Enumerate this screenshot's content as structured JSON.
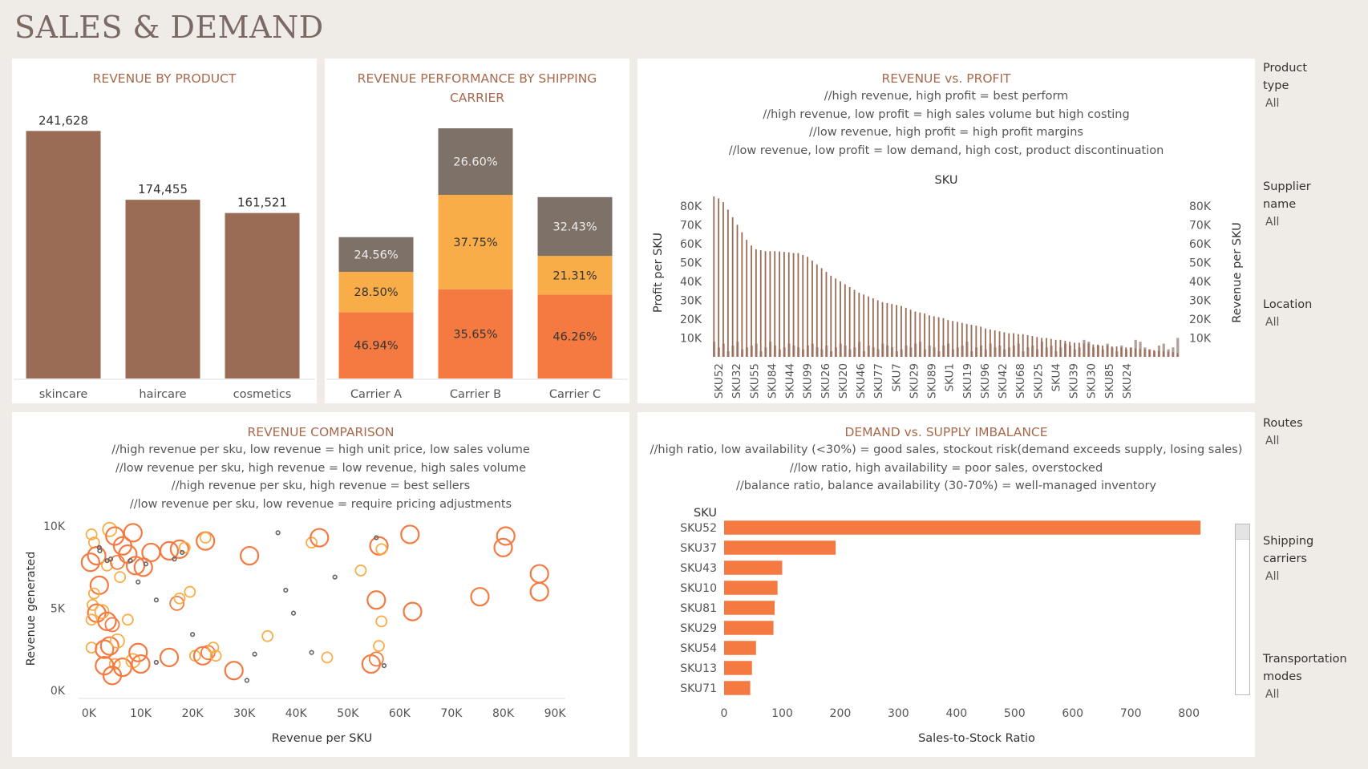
{
  "page": {
    "title": "SALES & DEMAND"
  },
  "colors": {
    "brown": "#9b6c55",
    "grey": "#7e7168",
    "yellow": "#f8ad49",
    "orange": "#f57a41",
    "light_brown": "#b3a099",
    "title": "#a86a4c"
  },
  "panels": {
    "revenue_by_product": {
      "title": "REVENUE BY PRODUCT"
    },
    "shipping": {
      "title_line1": "REVENUE PERFORMANCE BY SHIPPING",
      "title_line2": "CARRIER"
    },
    "rev_profit": {
      "title": "REVENUE vs. PROFIT",
      "notes": [
        "//high revenue, high profit = best perform",
        "//high revenue, low profit = high sales volume but high costing",
        "//low revenue, high profit = high profit margins",
        "//low revenue, low profit = low demand, high cost, product discontinuation"
      ],
      "sku_header": "SKU",
      "left_axis": "Profit per SKU",
      "right_axis": "Revenue per SKU"
    },
    "comparison": {
      "title": "REVENUE COMPARISON",
      "notes": [
        "//high revenue per sku, low revenue = high unit price, low sales volume",
        "//low revenue per sku, high revenue = low revenue, high sales volume",
        "//high revenue per sku, high revenue = best sellers",
        "//low revenue per sku, low revenue = require pricing adjustments"
      ],
      "ylabel": "Revenue generated",
      "xlabel": "Revenue per SKU"
    },
    "imbalance": {
      "title": "DEMAND vs. SUPPLY IMBALANCE",
      "notes": [
        "//high ratio, low availability (<30%) = good sales, stockout risk(demand exceeds supply, losing sales)",
        "//low ratio, high availability = poor sales, overstocked",
        "//balance ratio, balance availability (30-70%) = well-managed inventory"
      ],
      "sku_header": "SKU",
      "xlabel": "Sales-to-Stock Ratio"
    }
  },
  "filters": [
    {
      "label_lines": [
        "Product",
        "type"
      ],
      "value": "All"
    },
    {
      "label_lines": [
        "Supplier",
        "name"
      ],
      "value": "All"
    },
    {
      "label_lines": [
        "Location"
      ],
      "value": "All"
    },
    {
      "label_lines": [
        "Routes"
      ],
      "value": "All"
    },
    {
      "label_lines": [
        "Shipping",
        "carriers"
      ],
      "value": "All"
    },
    {
      "label_lines": [
        "Transportation",
        "modes"
      ],
      "value": "All"
    }
  ],
  "chart_data": [
    {
      "type": "bar",
      "title": "REVENUE BY PRODUCT",
      "categories": [
        "skincare",
        "haircare",
        "cosmetics"
      ],
      "values": [
        241628,
        174455,
        161521
      ],
      "data_labels": [
        "241,628",
        "174,455",
        "161,521"
      ]
    },
    {
      "type": "bar",
      "stacked": true,
      "percent_stacked": true,
      "title": "REVENUE PERFORMANCE BY SHIPPING CARRIER",
      "categories": [
        "Carrier A",
        "Carrier B",
        "Carrier C"
      ],
      "totals_relative": [
        0.565,
        1.0,
        0.725
      ],
      "series": [
        {
          "color": "#f57a41",
          "values": [
            46.94,
            35.65,
            46.26
          ],
          "labels": [
            "46.94%",
            "35.65%",
            "46.26%"
          ]
        },
        {
          "color": "#f8ad49",
          "values": [
            28.5,
            37.75,
            21.31
          ],
          "labels": [
            "28.50%",
            "37.75%",
            "21.31%"
          ]
        },
        {
          "color": "#7e7168",
          "values": [
            24.56,
            26.6,
            32.43
          ],
          "labels": [
            "24.56%",
            "26.60%",
            "32.43%"
          ]
        }
      ]
    },
    {
      "type": "bar",
      "title": "REVENUE vs. PROFIT",
      "yticks": [
        "80K",
        "70K",
        "60K",
        "50K",
        "40K",
        "30K",
        "20K",
        "10K"
      ],
      "ytick_values": [
        80000,
        70000,
        60000,
        50000,
        40000,
        30000,
        20000,
        10000
      ],
      "ylim": [
        0,
        85000
      ],
      "x_tick_labels": [
        "SKU52",
        "SKU32",
        "SKU55",
        "SKU84",
        "SKU44",
        "SKU99",
        "SKU26",
        "SKU20",
        "SKU46",
        "SKU77",
        "SKU7",
        "SKU29",
        "SKU89",
        "SKU1",
        "SKU19",
        "SKU96",
        "SKU42",
        "SKU68",
        "SKU25",
        "SKU4",
        "SKU39",
        "SKU30",
        "SKU85",
        "SKU24"
      ],
      "series": [
        {
          "name": "Profit per SKU",
          "values": [
            85000,
            84000,
            82000,
            78000,
            74000,
            70000,
            66000,
            62000,
            59000,
            57000,
            56500,
            56000,
            56000,
            56000,
            55800,
            55600,
            55400,
            55000,
            55000,
            54000,
            53000,
            51000,
            49000,
            47000,
            45000,
            43000,
            41500,
            40000,
            38500,
            37000,
            35500,
            34000,
            33000,
            32000,
            31000,
            30000,
            29000,
            28500,
            28000,
            27500,
            27000,
            26000,
            25000,
            24000,
            23500,
            23000,
            22000,
            21500,
            21000,
            20500,
            19500,
            19000,
            18500,
            18000,
            17500,
            17000,
            16500,
            16000,
            15000,
            14500,
            14000,
            13500,
            13000,
            12500,
            12500,
            12000,
            12000,
            11500,
            11000,
            10500,
            10000,
            10000,
            9500,
            9000,
            9000,
            8500,
            8000,
            7500,
            7500,
            7000,
            7000,
            6500,
            6500,
            6000,
            6000,
            5500,
            5500,
            5000,
            5000,
            4800,
            4500,
            4200,
            4000,
            3800,
            3500,
            3200,
            3000,
            2800,
            2500,
            2000
          ]
        },
        {
          "name": "Revenue per SKU",
          "values": [
            8000,
            5000,
            7000,
            3000,
            6000,
            8000,
            4000,
            5000,
            6000,
            7000,
            3000,
            5000,
            8000,
            6000,
            4000,
            5000,
            7000,
            6000,
            5000,
            4000,
            6000,
            7000,
            5000,
            4000,
            6000,
            3000,
            5000,
            7000,
            6000,
            4000,
            5000,
            8000,
            3000,
            6000,
            5000,
            4000,
            7000,
            6000,
            5000,
            3000,
            4000,
            6000,
            5000,
            7000,
            8000,
            4000,
            6000,
            5000,
            3000,
            6000,
            7000,
            4000,
            5000,
            6000,
            8000,
            3000,
            5000,
            6000,
            4000,
            7000,
            5000,
            6000,
            4000,
            5000,
            6000,
            7000,
            3000,
            5000,
            6000,
            4000,
            8000,
            5000,
            6000,
            3000,
            5000,
            7000,
            6000,
            4000,
            5000,
            9000,
            8000,
            5000,
            6000,
            4000,
            7000,
            5000,
            3000,
            6000,
            4000,
            5000,
            9000,
            8000,
            5000,
            4000,
            3000,
            6000,
            7000,
            4000,
            5000,
            10000
          ]
        }
      ]
    },
    {
      "type": "scatter",
      "title": "REVENUE COMPARISON",
      "xlabel": "Revenue per SKU",
      "ylabel": "Revenue generated",
      "xticks": [
        "0K",
        "10K",
        "20K",
        "30K",
        "40K",
        "50K",
        "60K",
        "70K",
        "80K",
        "90K"
      ],
      "xtick_values": [
        0,
        10000,
        20000,
        30000,
        40000,
        50000,
        60000,
        70000,
        80000,
        90000
      ],
      "yticks": [
        "10K",
        "5K",
        "0K"
      ],
      "ytick_values": [
        10000,
        5000,
        0
      ],
      "xlim": [
        -2000,
        92000
      ],
      "ylim": [
        -500,
        10500
      ],
      "points": [
        {
          "x": 500,
          "y": 9500,
          "c": "y",
          "s": 1
        },
        {
          "x": 1000,
          "y": 9000,
          "c": "y",
          "s": 1
        },
        {
          "x": 4000,
          "y": 9800,
          "c": "y",
          "s": 1.5
        },
        {
          "x": 5000,
          "y": 9400,
          "c": "o",
          "s": 2
        },
        {
          "x": 8500,
          "y": 9600,
          "c": "o",
          "s": 2
        },
        {
          "x": 6500,
          "y": 8800,
          "c": "o",
          "s": 2
        },
        {
          "x": 7500,
          "y": 8300,
          "c": "o",
          "s": 2
        },
        {
          "x": 300,
          "y": 7800,
          "c": "o",
          "s": 2
        },
        {
          "x": 1500,
          "y": 8200,
          "c": "o",
          "s": 2
        },
        {
          "x": 3500,
          "y": 7600,
          "c": "y",
          "s": 1
        },
        {
          "x": 5500,
          "y": 7800,
          "c": "o",
          "s": 1.5
        },
        {
          "x": 6000,
          "y": 6900,
          "c": "y",
          "s": 1
        },
        {
          "x": 9000,
          "y": 7600,
          "c": "o",
          "s": 2
        },
        {
          "x": 10500,
          "y": 7500,
          "c": "o",
          "s": 2
        },
        {
          "x": 12000,
          "y": 8400,
          "c": "o",
          "s": 2
        },
        {
          "x": 15500,
          "y": 8500,
          "c": "o",
          "s": 2
        },
        {
          "x": 17500,
          "y": 8600,
          "c": "o",
          "s": 2
        },
        {
          "x": 18500,
          "y": 8700,
          "c": "y",
          "s": 1
        },
        {
          "x": 22500,
          "y": 9100,
          "c": "o",
          "s": 2
        },
        {
          "x": 22500,
          "y": 9300,
          "c": "y",
          "s": 1
        },
        {
          "x": 31000,
          "y": 8200,
          "c": "o",
          "s": 2
        },
        {
          "x": 2000,
          "y": 6400,
          "c": "o",
          "s": 2
        },
        {
          "x": 1000,
          "y": 5900,
          "c": "y",
          "s": 1
        },
        {
          "x": 700,
          "y": 5200,
          "c": "y",
          "s": 1
        },
        {
          "x": 1500,
          "y": 4700,
          "c": "o",
          "s": 2
        },
        {
          "x": 500,
          "y": 4300,
          "c": "y",
          "s": 1
        },
        {
          "x": 2500,
          "y": 4800,
          "c": "y",
          "s": 1.5
        },
        {
          "x": 3500,
          "y": 4200,
          "c": "o",
          "s": 2
        },
        {
          "x": 4500,
          "y": 4000,
          "c": "o",
          "s": 1.5
        },
        {
          "x": 7500,
          "y": 4300,
          "c": "y",
          "s": 1
        },
        {
          "x": 17000,
          "y": 5300,
          "c": "o",
          "s": 1.5
        },
        {
          "x": 17500,
          "y": 5600,
          "c": "y",
          "s": 1
        },
        {
          "x": 19500,
          "y": 6000,
          "c": "y",
          "s": 1
        },
        {
          "x": 500,
          "y": 2600,
          "c": "y",
          "s": 1
        },
        {
          "x": 3000,
          "y": 2500,
          "c": "o",
          "s": 2
        },
        {
          "x": 4000,
          "y": 2700,
          "c": "o",
          "s": 2
        },
        {
          "x": 5500,
          "y": 3000,
          "c": "y",
          "s": 1.5
        },
        {
          "x": 5000,
          "y": 1600,
          "c": "y",
          "s": 1
        },
        {
          "x": 3000,
          "y": 1500,
          "c": "o",
          "s": 2
        },
        {
          "x": 4500,
          "y": 900,
          "c": "o",
          "s": 2
        },
        {
          "x": 6500,
          "y": 1400,
          "c": "o",
          "s": 2
        },
        {
          "x": 8500,
          "y": 1800,
          "c": "y",
          "s": 1.5
        },
        {
          "x": 9500,
          "y": 2300,
          "c": "o",
          "s": 2
        },
        {
          "x": 10000,
          "y": 1600,
          "c": "o",
          "s": 2
        },
        {
          "x": 15500,
          "y": 2000,
          "c": "o",
          "s": 2
        },
        {
          "x": 20500,
          "y": 2100,
          "c": "y",
          "s": 1
        },
        {
          "x": 22000,
          "y": 2100,
          "c": "o",
          "s": 2
        },
        {
          "x": 23000,
          "y": 2300,
          "c": "o",
          "s": 1.5
        },
        {
          "x": 24000,
          "y": 2600,
          "c": "y",
          "s": 1
        },
        {
          "x": 24500,
          "y": 2100,
          "c": "y",
          "s": 1
        },
        {
          "x": 28000,
          "y": 1200,
          "c": "o",
          "s": 2
        },
        {
          "x": 34500,
          "y": 3300,
          "c": "y",
          "s": 1
        },
        {
          "x": 43000,
          "y": 9000,
          "c": "y",
          "s": 1
        },
        {
          "x": 44500,
          "y": 9300,
          "c": "o",
          "s": 2
        },
        {
          "x": 52500,
          "y": 7300,
          "c": "y",
          "s": 1
        },
        {
          "x": 56000,
          "y": 8800,
          "c": "o",
          "s": 2
        },
        {
          "x": 56500,
          "y": 8600,
          "c": "y",
          "s": 1
        },
        {
          "x": 62000,
          "y": 9500,
          "c": "o",
          "s": 2
        },
        {
          "x": 55500,
          "y": 5500,
          "c": "o",
          "s": 2
        },
        {
          "x": 56500,
          "y": 4200,
          "c": "y",
          "s": 1
        },
        {
          "x": 62500,
          "y": 4800,
          "c": "o",
          "s": 2
        },
        {
          "x": 75500,
          "y": 5700,
          "c": "o",
          "s": 2
        },
        {
          "x": 80000,
          "y": 8700,
          "c": "o",
          "s": 2
        },
        {
          "x": 80500,
          "y": 9400,
          "c": "o",
          "s": 2
        },
        {
          "x": 87000,
          "y": 7100,
          "c": "o",
          "s": 2
        },
        {
          "x": 87000,
          "y": 6000,
          "c": "o",
          "s": 2
        },
        {
          "x": 56000,
          "y": 2700,
          "c": "y",
          "s": 1
        },
        {
          "x": 54500,
          "y": 1600,
          "c": "o",
          "s": 2
        },
        {
          "x": 55500,
          "y": 1900,
          "c": "o",
          "s": 1.5
        },
        {
          "x": 46000,
          "y": 2000,
          "c": "y",
          "s": 1
        },
        {
          "x": 2000,
          "y": 8700,
          "c": "g",
          "s": 0
        },
        {
          "x": 2100,
          "y": 8500,
          "c": "g",
          "s": 0
        },
        {
          "x": 3500,
          "y": 7900,
          "c": "g",
          "s": 0
        },
        {
          "x": 4200,
          "y": 8000,
          "c": "g",
          "s": 0
        },
        {
          "x": 8000,
          "y": 7900,
          "c": "g",
          "s": 0
        },
        {
          "x": 9500,
          "y": 6600,
          "c": "g",
          "s": 0
        },
        {
          "x": 11000,
          "y": 7700,
          "c": "g",
          "s": 0
        },
        {
          "x": 13000,
          "y": 5500,
          "c": "g",
          "s": 0
        },
        {
          "x": 16500,
          "y": 8000,
          "c": "g",
          "s": 0
        },
        {
          "x": 18000,
          "y": 8400,
          "c": "g",
          "s": 0
        },
        {
          "x": 36500,
          "y": 9600,
          "c": "g",
          "s": 0
        },
        {
          "x": 38000,
          "y": 6100,
          "c": "g",
          "s": 0
        },
        {
          "x": 39500,
          "y": 4700,
          "c": "g",
          "s": 0
        },
        {
          "x": 47500,
          "y": 6900,
          "c": "g",
          "s": 0
        },
        {
          "x": 55500,
          "y": 9300,
          "c": "g",
          "s": 0
        },
        {
          "x": 20000,
          "y": 3400,
          "c": "g",
          "s": 0
        },
        {
          "x": 13000,
          "y": 1700,
          "c": "g",
          "s": 0
        },
        {
          "x": 30500,
          "y": 600,
          "c": "g",
          "s": 0
        },
        {
          "x": 32000,
          "y": 2200,
          "c": "g",
          "s": 0
        },
        {
          "x": 43000,
          "y": 2300,
          "c": "g",
          "s": 0
        },
        {
          "x": 57000,
          "y": 1500,
          "c": "g",
          "s": 0
        }
      ]
    },
    {
      "type": "bar",
      "orientation": "horizontal",
      "title": "DEMAND vs. SUPPLY IMBALANCE",
      "xlabel": "Sales-to-Stock Ratio",
      "categories": [
        "SKU52",
        "SKU37",
        "SKU43",
        "SKU10",
        "SKU81",
        "SKU29",
        "SKU54",
        "SKU13",
        "SKU71"
      ],
      "values": [
        820,
        192,
        100,
        92,
        87,
        85,
        55,
        48,
        45
      ],
      "xticks": [
        "0",
        "100",
        "200",
        "300",
        "400",
        "500",
        "600",
        "700",
        "800"
      ],
      "xtick_values": [
        0,
        100,
        200,
        300,
        400,
        500,
        600,
        700,
        800
      ],
      "xlim": [
        0,
        835
      ]
    }
  ]
}
